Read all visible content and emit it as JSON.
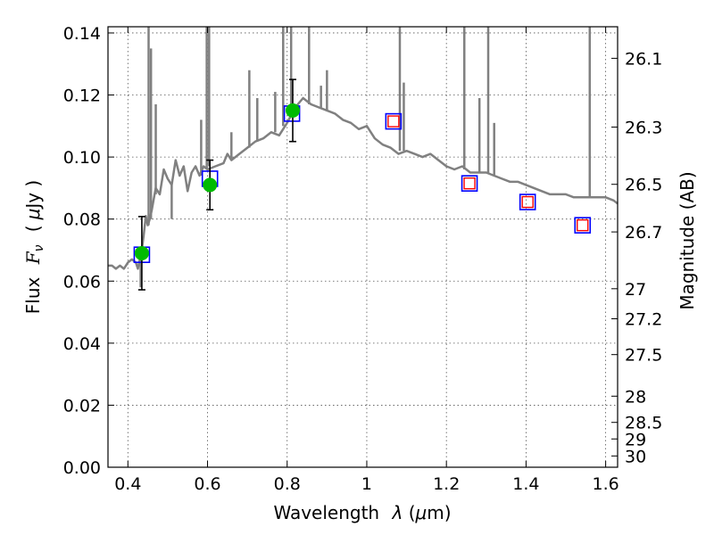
{
  "chart_data": {
    "type": "line",
    "xlabel_text": "Wavelength",
    "xlabel_symbol": "λ",
    "xlabel_unit_open": " (",
    "xlabel_mu": "μ",
    "xlabel_unit_close": "m)",
    "ylabel_text": "Flux",
    "ylabel_F": "F",
    "ylabel_nu": "ν",
    "ylabel_unit_open": "(",
    "ylabel_mu": "μ",
    "ylabel_unit_close": "Jy )",
    "y2label": "Magnitude (AB)",
    "grid": true,
    "xlim": [
      0.35,
      1.63
    ],
    "ylim": [
      0.0,
      0.142
    ],
    "x_ticks": [
      0.4,
      0.6,
      0.8,
      1.0,
      1.2,
      1.4,
      1.6
    ],
    "x_tick_labels": [
      "0.4",
      "0.6",
      "0.8",
      "1",
      "1.2",
      "1.4",
      "1.6"
    ],
    "y_ticks": [
      0.0,
      0.02,
      0.04,
      0.06,
      0.08,
      0.1,
      0.12,
      0.14
    ],
    "y_tick_labels": [
      "0.00",
      "0.02",
      "0.04",
      "0.06",
      "0.08",
      "0.10",
      "0.12",
      "0.14"
    ],
    "y2_ticks": [
      {
        "label": "26.1",
        "mag": 26.1
      },
      {
        "label": "26.3",
        "mag": 26.3
      },
      {
        "label": "26.5",
        "mag": 26.5
      },
      {
        "label": "26.7",
        "mag": 26.7
      },
      {
        "label": "27",
        "mag": 27.0
      },
      {
        "label": "27.2",
        "mag": 27.2
      },
      {
        "label": "27.5",
        "mag": 27.5
      },
      {
        "label": "28",
        "mag": 28.0
      },
      {
        "label": "28.5",
        "mag": 28.5
      },
      {
        "label": "29",
        "mag": 29.0
      },
      {
        "label": "30",
        "mag": 30.0
      }
    ],
    "colors": {
      "model": "#808080",
      "observed": "#00bb00",
      "model_band": "#0000ff",
      "predicted": "#ff0000",
      "errorbar": "#000000"
    },
    "series": [
      {
        "name": "model-sed",
        "kind": "line",
        "x": [
          0.35,
          0.36,
          0.37,
          0.38,
          0.39,
          0.4,
          0.41,
          0.42,
          0.425,
          0.43,
          0.435,
          0.44,
          0.445,
          0.45,
          0.455,
          0.46,
          0.47,
          0.48,
          0.49,
          0.5,
          0.51,
          0.52,
          0.53,
          0.54,
          0.55,
          0.56,
          0.57,
          0.58,
          0.59,
          0.6,
          0.62,
          0.64,
          0.65,
          0.66,
          0.68,
          0.7,
          0.72,
          0.74,
          0.76,
          0.78,
          0.8,
          0.82,
          0.84,
          0.86,
          0.88,
          0.9,
          0.92,
          0.94,
          0.96,
          0.98,
          1.0,
          1.02,
          1.04,
          1.06,
          1.08,
          1.1,
          1.12,
          1.14,
          1.16,
          1.18,
          1.2,
          1.22,
          1.24,
          1.26,
          1.28,
          1.3,
          1.32,
          1.34,
          1.36,
          1.38,
          1.4,
          1.42,
          1.44,
          1.46,
          1.48,
          1.5,
          1.52,
          1.54,
          1.56,
          1.58,
          1.6,
          1.62,
          1.63
        ],
        "y": [
          0.065,
          0.065,
          0.064,
          0.065,
          0.064,
          0.066,
          0.067,
          0.066,
          0.064,
          0.067,
          0.07,
          0.075,
          0.081,
          0.078,
          0.08,
          0.083,
          0.09,
          0.088,
          0.096,
          0.093,
          0.091,
          0.099,
          0.094,
          0.097,
          0.089,
          0.095,
          0.097,
          0.094,
          0.097,
          0.096,
          0.097,
          0.098,
          0.101,
          0.099,
          0.101,
          0.103,
          0.105,
          0.106,
          0.108,
          0.107,
          0.111,
          0.116,
          0.119,
          0.117,
          0.116,
          0.115,
          0.114,
          0.112,
          0.111,
          0.109,
          0.11,
          0.106,
          0.104,
          0.103,
          0.101,
          0.102,
          0.101,
          0.1,
          0.101,
          0.099,
          0.097,
          0.096,
          0.097,
          0.095,
          0.095,
          0.095,
          0.094,
          0.093,
          0.092,
          0.092,
          0.091,
          0.09,
          0.089,
          0.088,
          0.088,
          0.088,
          0.087,
          0.087,
          0.087,
          0.087,
          0.087,
          0.086,
          0.085
        ]
      },
      {
        "name": "model-spikes",
        "kind": "vertical-lines",
        "points": [
          {
            "x": 0.432,
            "y0": 0.067,
            "y1": 0.058
          },
          {
            "x": 0.452,
            "y0": 0.078,
            "y1": 0.142
          },
          {
            "x": 0.458,
            "y0": 0.08,
            "y1": 0.135
          },
          {
            "x": 0.47,
            "y0": 0.088,
            "y1": 0.117
          },
          {
            "x": 0.51,
            "y0": 0.091,
            "y1": 0.08
          },
          {
            "x": 0.584,
            "y0": 0.094,
            "y1": 0.112
          },
          {
            "x": 0.598,
            "y0": 0.096,
            "y1": 0.142
          },
          {
            "x": 0.604,
            "y0": 0.097,
            "y1": 0.142
          },
          {
            "x": 0.66,
            "y0": 0.099,
            "y1": 0.108
          },
          {
            "x": 0.705,
            "y0": 0.103,
            "y1": 0.128
          },
          {
            "x": 0.725,
            "y0": 0.105,
            "y1": 0.119
          },
          {
            "x": 0.77,
            "y0": 0.108,
            "y1": 0.121
          },
          {
            "x": 0.79,
            "y0": 0.11,
            "y1": 0.142
          },
          {
            "x": 0.81,
            "y0": 0.113,
            "y1": 0.142
          },
          {
            "x": 0.855,
            "y0": 0.117,
            "y1": 0.142
          },
          {
            "x": 0.885,
            "y0": 0.116,
            "y1": 0.123
          },
          {
            "x": 0.9,
            "y0": 0.115,
            "y1": 0.128
          },
          {
            "x": 1.083,
            "y0": 0.102,
            "y1": 0.142
          },
          {
            "x": 1.093,
            "y0": 0.102,
            "y1": 0.124
          },
          {
            "x": 1.245,
            "y0": 0.096,
            "y1": 0.142
          },
          {
            "x": 1.283,
            "y0": 0.095,
            "y1": 0.119
          },
          {
            "x": 1.305,
            "y0": 0.095,
            "y1": 0.142
          },
          {
            "x": 1.32,
            "y0": 0.094,
            "y1": 0.111
          },
          {
            "x": 1.56,
            "y0": 0.087,
            "y1": 0.142
          }
        ]
      },
      {
        "name": "model-band-flux",
        "kind": "open-square",
        "x": [
          0.435,
          0.606,
          0.812,
          1.067,
          1.258,
          1.404,
          1.542
        ],
        "y": [
          0.0685,
          0.093,
          0.114,
          0.1115,
          0.0915,
          0.0855,
          0.078
        ]
      },
      {
        "name": "predicted-flux",
        "kind": "small-square",
        "x": [
          1.067,
          1.258,
          1.404,
          1.542
        ],
        "y": [
          0.1115,
          0.0915,
          0.0855,
          0.078
        ]
      },
      {
        "name": "observed-flux",
        "kind": "filled-circle",
        "x": [
          0.435,
          0.606,
          0.814
        ],
        "y": [
          0.069,
          0.091,
          0.115
        ],
        "err": [
          0.0118,
          0.008,
          0.01
        ]
      }
    ]
  }
}
